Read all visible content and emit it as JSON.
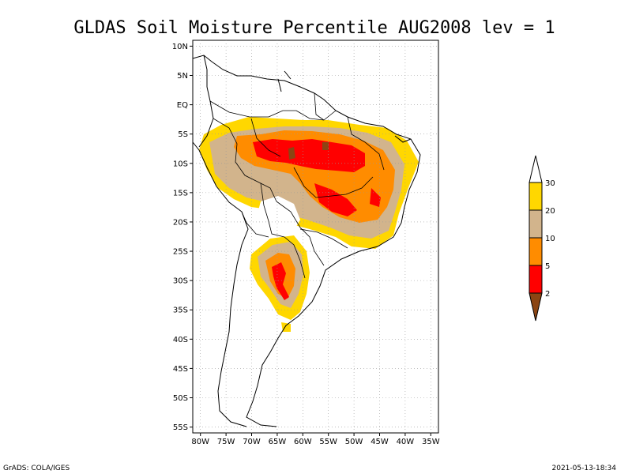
{
  "title": "GLDAS Soil Moisture Percentile AUG2008 lev = 1",
  "map": {
    "lon_range": [
      -80,
      -35
    ],
    "lat_range": [
      -55,
      10
    ],
    "lat_ticks": [
      {
        "lat": 10,
        "label": "10N"
      },
      {
        "lat": 5,
        "label": "5N"
      },
      {
        "lat": 0,
        "label": "EQ"
      },
      {
        "lat": -5,
        "label": "5S"
      },
      {
        "lat": -10,
        "label": "10S"
      },
      {
        "lat": -15,
        "label": "15S"
      },
      {
        "lat": -20,
        "label": "20S"
      },
      {
        "lat": -25,
        "label": "25S"
      },
      {
        "lat": -30,
        "label": "30S"
      },
      {
        "lat": -35,
        "label": "35S"
      },
      {
        "lat": -40,
        "label": "40S"
      },
      {
        "lat": -45,
        "label": "45S"
      },
      {
        "lat": -50,
        "label": "50S"
      },
      {
        "lat": -55,
        "label": "55S"
      }
    ],
    "lon_ticks": [
      {
        "lon": -80,
        "label": "80W"
      },
      {
        "lon": -75,
        "label": "75W"
      },
      {
        "lon": -70,
        "label": "70W"
      },
      {
        "lon": -65,
        "label": "65W"
      },
      {
        "lon": -60,
        "label": "60W"
      },
      {
        "lon": -55,
        "label": "55W"
      },
      {
        "lon": -50,
        "label": "50W"
      },
      {
        "lon": -45,
        "label": "45W"
      },
      {
        "lon": -40,
        "label": "40W"
      },
      {
        "lon": -35,
        "label": "35W"
      }
    ]
  },
  "legend": {
    "levels": [
      "30",
      "20",
      "10",
      "5",
      "2"
    ],
    "colors": [
      "#ffffff",
      "#ffd700",
      "#d2b48c",
      "#ff8c00",
      "#ff0000",
      "#8b4513"
    ]
  },
  "colors": {
    "p30": "#ffd700",
    "p20": "#d2b48c",
    "p10": "#ff8c00",
    "p5": "#ff0000",
    "p2": "#8b4513"
  },
  "footer": {
    "left": "GrADS: COLA/IGES",
    "right": "2021-05-13-18:34"
  }
}
